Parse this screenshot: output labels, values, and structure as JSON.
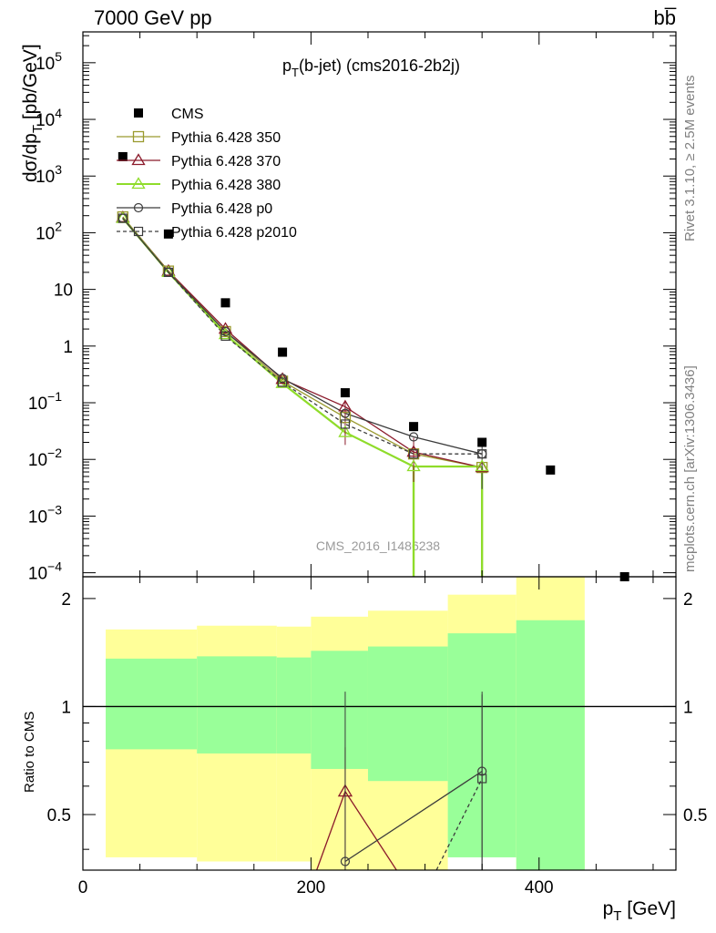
{
  "header": {
    "left": "7000 GeV pp",
    "right": "bb̅"
  },
  "plot_title": {
    "main": "p",
    "sub": "T",
    "rest": "(b-jet) (cms2016-2b2j)"
  },
  "watermark": "CMS_2016_I1486238",
  "side_labels": {
    "rivet": "Rivet 3.1.10, ≥ 2.5M events",
    "mcplots": "mcplots.cern.ch [arXiv:1306.3436]"
  },
  "axes": {
    "ylabel_main": {
      "a": "dσ/dp",
      "sub": "T",
      "b": " [pb/GeV]"
    },
    "ylabel_ratio": "Ratio to CMS",
    "xlabel": {
      "a": "p",
      "sub": "T",
      "b": " [GeV]"
    },
    "xticks": [
      "0",
      "200",
      "400"
    ],
    "yticks_main": [
      {
        "v": 100000.0,
        "base": "10",
        "exp": "5"
      },
      {
        "v": 10000.0,
        "base": "10",
        "exp": "4"
      },
      {
        "v": 1000.0,
        "base": "10",
        "exp": "3"
      },
      {
        "v": 100.0,
        "base": "10",
        "exp": "2"
      },
      {
        "v": 10,
        "base": "10",
        "exp": ""
      },
      {
        "v": 1,
        "base": "1",
        "exp": ""
      },
      {
        "v": 0.1,
        "base": "10",
        "exp": "−1"
      },
      {
        "v": 0.01,
        "base": "10",
        "exp": "−2"
      },
      {
        "v": 0.001,
        "base": "10",
        "exp": "−3"
      },
      {
        "v": 0.0001,
        "base": "10",
        "exp": "−4"
      }
    ],
    "yticks_ratio": [
      {
        "v": 0.5,
        "label": "0.5"
      },
      {
        "v": 1,
        "label": "1"
      },
      {
        "v": 2,
        "label": "2"
      }
    ]
  },
  "chart_data": [
    {
      "type": "scatter",
      "panel": "main",
      "x_range": [
        0,
        520
      ],
      "y_range": [
        8.5e-05,
        350000
      ],
      "y_scale": "log",
      "legend_position": "top-left",
      "series": [
        {
          "name": "CMS",
          "style": "data",
          "color": "#000000",
          "x": [
            35,
            75,
            125,
            175,
            230,
            290,
            350,
            410,
            475
          ],
          "y": [
            2200,
            95,
            5.8,
            0.78,
            0.15,
            0.038,
            0.02,
            0.0065,
            8.5e-05
          ]
        },
        {
          "name": "Pythia 6.428 350",
          "style": "square-open",
          "color": "#9a9a2e",
          "x": [
            35,
            75,
            125,
            175,
            230,
            290,
            350
          ],
          "y": [
            190,
            21,
            1.8,
            0.24,
            0.055,
            0.0125,
            0.0072
          ]
        },
        {
          "name": "Pythia 6.428 370",
          "style": "triangle-open",
          "color": "#8b1a2b",
          "x": [
            35,
            75,
            125,
            175,
            230,
            290,
            350
          ],
          "y": [
            185,
            21,
            2.0,
            0.26,
            0.085,
            0.0135,
            0.0072
          ]
        },
        {
          "name": "Pythia 6.428 380",
          "style": "triangle-open",
          "color": "#8fdc2a",
          "x": [
            35,
            75,
            125,
            175,
            230,
            290,
            350
          ],
          "y": [
            180,
            20,
            1.6,
            0.22,
            0.03,
            0.0075,
            0.0075
          ]
        },
        {
          "name": "Pythia 6.428 p0",
          "style": "circle-open",
          "color": "#3c3c3c",
          "x": [
            35,
            75,
            125,
            175,
            230,
            290,
            350
          ],
          "y": [
            180,
            20,
            1.8,
            0.27,
            0.065,
            0.025,
            0.0125
          ]
        },
        {
          "name": "Pythia 6.428 p2010",
          "style": "square-open-dashed",
          "color": "#3c3c3c",
          "x": [
            35,
            75,
            125,
            175,
            230,
            290,
            350
          ],
          "y": [
            180,
            20,
            1.5,
            0.23,
            0.042,
            0.0125,
            0.0125
          ]
        }
      ]
    },
    {
      "type": "area",
      "panel": "ratio",
      "x_range": [
        0,
        520
      ],
      "y_range": [
        0.35,
        2.3
      ],
      "y_scale": "log",
      "bands": {
        "bins": [
          20,
          100,
          170,
          200,
          250,
          320,
          380,
          440
        ],
        "green_low": [
          0.76,
          0.74,
          0.74,
          0.67,
          0.62,
          0.38,
          0.33
        ],
        "green_high": [
          1.36,
          1.38,
          1.37,
          1.43,
          1.47,
          1.6,
          1.74
        ],
        "yellow_low": [
          0.38,
          0.37,
          0.37,
          0.33,
          0.33,
          0.43,
          0.33
        ],
        "yellow_high": [
          1.64,
          1.68,
          1.67,
          1.78,
          1.85,
          2.05,
          2.3
        ]
      },
      "series": [
        {
          "name": "Pythia 6.428 370",
          "color": "#8b1a2b",
          "x": [
            205,
            230,
            275
          ],
          "y": [
            0.33,
            0.58,
            0.33
          ]
        },
        {
          "name": "Pythia 6.428 p0",
          "color": "#3c3c3c",
          "x": [
            230,
            350
          ],
          "y": [
            0.37,
            0.66
          ]
        },
        {
          "name": "Pythia 6.428 p2010",
          "color": "#3c3c3c",
          "x": [
            310,
            350
          ],
          "y": [
            0.33,
            0.63
          ]
        }
      ]
    }
  ]
}
